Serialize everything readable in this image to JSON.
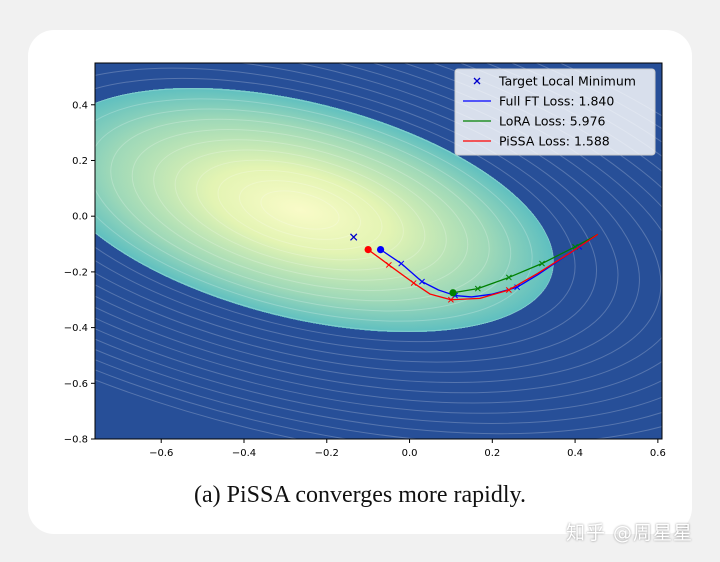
{
  "caption": "(a) PiSSA converges more rapidly.",
  "watermark": "知乎 @周星星",
  "chart_data": {
    "type": "line",
    "xlim": [
      -0.76,
      0.61
    ],
    "ylim": [
      -0.8,
      0.55
    ],
    "xticks": [
      -0.6,
      -0.4,
      -0.2,
      0.0,
      0.2,
      0.4,
      0.6
    ],
    "yticks": [
      -0.8,
      -0.6,
      -0.4,
      -0.2,
      0.0,
      0.2,
      0.4
    ],
    "xtick_labels": [
      "−0.6",
      "−0.4",
      "−0.2",
      "0.0",
      "0.2",
      "0.4",
      "0.6"
    ],
    "ytick_labels": [
      "−0.8",
      "−0.6",
      "−0.4",
      "−0.2",
      "0.0",
      "0.2",
      "0.4"
    ],
    "grid": false,
    "legend_position": "top-right",
    "background": "filled contour (YlGnBu colormap), minimum near (-0.14, -0.08)",
    "target": {
      "label": "Target Local Minimum",
      "x": -0.135,
      "y": -0.075,
      "color": "#0000cc"
    },
    "series": [
      {
        "name": "Full FT Loss:  1.840",
        "color": "#0000ff",
        "x": [
          0.455,
          0.41,
          0.36,
          0.31,
          0.26,
          0.2,
          0.15,
          0.11,
          0.07,
          0.03,
          -0.02,
          -0.07
        ],
        "y": [
          -0.065,
          -0.11,
          -0.16,
          -0.21,
          -0.255,
          -0.28,
          -0.29,
          -0.285,
          -0.265,
          -0.235,
          -0.17,
          -0.12
        ],
        "markers_at": [
          1,
          4,
          7,
          9,
          10
        ],
        "end_marker": "circle"
      },
      {
        "name": "LoRA Loss:  5.976",
        "color": "#008000",
        "x": [
          0.455,
          0.4,
          0.32,
          0.24,
          0.165,
          0.105
        ],
        "y": [
          -0.065,
          -0.11,
          -0.17,
          -0.22,
          -0.26,
          -0.275
        ],
        "markers_at": [
          1,
          2,
          3,
          4
        ],
        "end_marker": "circle"
      },
      {
        "name": "PiSSA Loss:  1.588",
        "color": "#ff0000",
        "x": [
          0.455,
          0.39,
          0.31,
          0.24,
          0.17,
          0.1,
          0.05,
          0.01,
          -0.05,
          -0.1
        ],
        "y": [
          -0.065,
          -0.13,
          -0.205,
          -0.265,
          -0.295,
          -0.3,
          -0.28,
          -0.24,
          -0.175,
          -0.12
        ],
        "markers_at": [
          3,
          5,
          7,
          8
        ],
        "end_marker": "circle"
      }
    ]
  }
}
